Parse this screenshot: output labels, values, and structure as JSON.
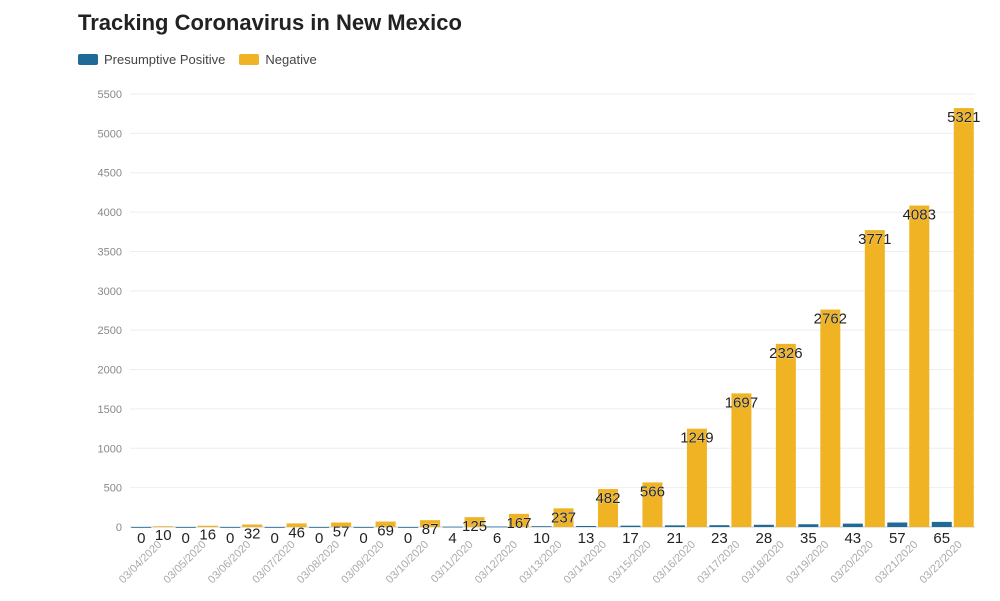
{
  "chart_data": {
    "type": "bar",
    "title": "Tracking Coronavirus in New Mexico",
    "categories": [
      "03/04/2020",
      "03/05/2020",
      "03/06/2020",
      "03/07/2020",
      "03/08/2020",
      "03/09/2020",
      "03/10/2020",
      "03/11/2020",
      "03/12/2020",
      "03/13/2020",
      "03/14/2020",
      "03/15/2020",
      "03/16/2020",
      "03/17/2020",
      "03/18/2020",
      "03/19/2020",
      "03/20/2020",
      "03/21/2020",
      "03/22/2020"
    ],
    "series": [
      {
        "name": "Presumptive Positive",
        "color": "#1f6a96",
        "values": [
          0,
          0,
          0,
          0,
          0,
          0,
          0,
          4,
          6,
          10,
          13,
          17,
          21,
          23,
          28,
          35,
          43,
          57,
          65
        ]
      },
      {
        "name": "Negative",
        "color": "#f0b323",
        "values": [
          10,
          16,
          32,
          46,
          57,
          69,
          87,
          125,
          167,
          237,
          482,
          566,
          1249,
          1697,
          2326,
          2762,
          3771,
          4083,
          5321
        ]
      }
    ],
    "ylim": [
      0,
      5500
    ],
    "yticks": [
      0,
      500,
      1000,
      1500,
      2000,
      2500,
      3000,
      3500,
      4000,
      4500,
      5000,
      5500
    ],
    "grid": true,
    "legend_position": "top-left",
    "data_labels": true
  }
}
